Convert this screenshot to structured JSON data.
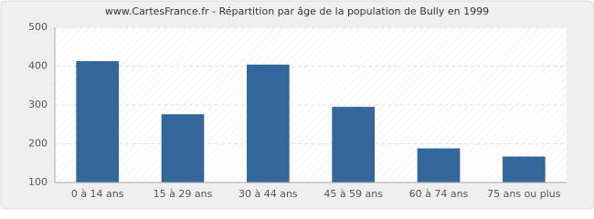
{
  "chart_data": {
    "type": "bar",
    "title": "www.CartesFrance.fr - Répartition par âge de la population de Bully en 1999",
    "categories": [
      "0 à 14 ans",
      "15 à 29 ans",
      "30 à 44 ans",
      "45 à 59 ans",
      "60 à 74 ans",
      "75 ans ou plus"
    ],
    "values": [
      413,
      276,
      404,
      295,
      188,
      167
    ],
    "color": "#336699",
    "ylim": [
      100,
      500
    ],
    "yticks": [
      100,
      200,
      300,
      400,
      500
    ],
    "grid": true
  }
}
